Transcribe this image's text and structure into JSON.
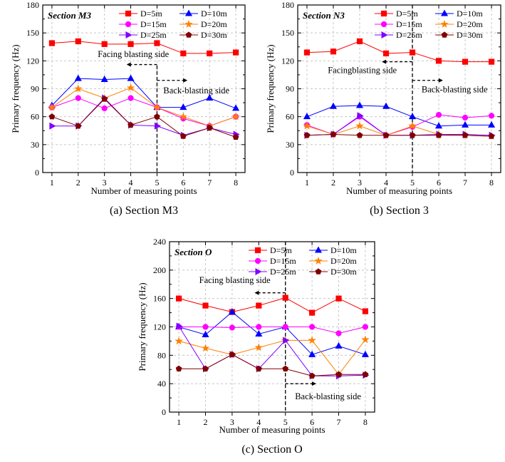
{
  "chart_data": [
    {
      "type": "line",
      "title": "Section M3",
      "caption": "(a) Section M3",
      "xlabel": "Number of measuring points",
      "ylabel": "Primary frequency (Hz)",
      "x": [
        1,
        2,
        3,
        4,
        5,
        6,
        7,
        8
      ],
      "xlim": [
        0.65,
        8.35
      ],
      "ylim": [
        0,
        180
      ],
      "yticks": [
        0,
        30,
        60,
        90,
        120,
        150,
        180
      ],
      "grid": true,
      "legend_position": "top-right",
      "annotations": {
        "facing": "Facing blasting side",
        "back": "Back-blasting side"
      },
      "series": [
        {
          "name": "D=5m",
          "marker": "square",
          "color": "#ff0000",
          "values": [
            139,
            141,
            138,
            138,
            139,
            128,
            128,
            129
          ]
        },
        {
          "name": "D=10m",
          "marker": "triangle-up",
          "color": "#0000ff",
          "values": [
            72,
            101,
            100,
            101,
            70,
            70,
            80,
            69
          ]
        },
        {
          "name": "D=15m",
          "marker": "circle",
          "color": "#ff00ff",
          "values": [
            70,
            80,
            69,
            80,
            70,
            58,
            50,
            60
          ]
        },
        {
          "name": "D=20m",
          "marker": "star",
          "color": "#ff8000",
          "values": [
            70,
            90,
            80,
            91,
            70,
            60,
            50,
            60
          ]
        },
        {
          "name": "D=25m",
          "marker": "triangle-right",
          "color": "#8000ff",
          "values": [
            50,
            50,
            80,
            51,
            50,
            40,
            48,
            41
          ]
        },
        {
          "name": "D=30m",
          "marker": "pentagon",
          "color": "#800000",
          "values": [
            60,
            50,
            79,
            51,
            60,
            39,
            48,
            38
          ]
        }
      ]
    },
    {
      "type": "line",
      "title": "Section N3",
      "caption": "(b) Section 3",
      "xlabel": "Number of measuring points",
      "ylabel": "Primary frequency (Hz)",
      "x": [
        1,
        2,
        3,
        4,
        5,
        6,
        7,
        8
      ],
      "xlim": [
        0.65,
        8.35
      ],
      "ylim": [
        0,
        180
      ],
      "yticks": [
        0,
        30,
        60,
        90,
        120,
        150,
        180
      ],
      "grid": true,
      "legend_position": "top-right",
      "annotations": {
        "facing": "Facingblasting side",
        "back": "Back-blasting side"
      },
      "series": [
        {
          "name": "D=5m",
          "marker": "square",
          "color": "#ff0000",
          "values": [
            129,
            130,
            141,
            128,
            129,
            120,
            119,
            119
          ]
        },
        {
          "name": "D=10m",
          "marker": "triangle-up",
          "color": "#0000ff",
          "values": [
            60,
            71,
            72,
            71,
            60,
            50,
            51,
            51
          ]
        },
        {
          "name": "D=15m",
          "marker": "circle",
          "color": "#ff00ff",
          "values": [
            51,
            41,
            60,
            40,
            49,
            62,
            59,
            61
          ]
        },
        {
          "name": "D=20m",
          "marker": "star",
          "color": "#ff8000",
          "values": [
            50,
            41,
            50,
            40,
            50,
            41,
            40,
            39
          ]
        },
        {
          "name": "D=25m",
          "marker": "triangle-right",
          "color": "#8000ff",
          "values": [
            40,
            41,
            61,
            40,
            40,
            41,
            41,
            40
          ]
        },
        {
          "name": "D=30m",
          "marker": "pentagon",
          "color": "#800000",
          "values": [
            40,
            41,
            40,
            40,
            40,
            40,
            40,
            39
          ]
        }
      ]
    },
    {
      "type": "line",
      "title": "Section O",
      "caption": "(c) Section O",
      "xlabel": "Number of measuring points",
      "ylabel": "Primary frequency (Hz)",
      "x": [
        1,
        2,
        3,
        4,
        5,
        6,
        7,
        8
      ],
      "xlim": [
        0.65,
        8.35
      ],
      "ylim": [
        0,
        240
      ],
      "yticks": [
        0,
        40,
        80,
        120,
        160,
        200,
        240
      ],
      "grid": true,
      "legend_position": "top-right",
      "annotations": {
        "facing": "Facing blasting side",
        "back": "Back-blasting side"
      },
      "series": [
        {
          "name": "D=5m",
          "marker": "square",
          "color": "#ff0000",
          "values": [
            160,
            150,
            141,
            150,
            161,
            140,
            160,
            142
          ]
        },
        {
          "name": "D=10m",
          "marker": "triangle-up",
          "color": "#0000ff",
          "values": [
            120,
            109,
            141,
            110,
            120,
            81,
            93,
            81
          ]
        },
        {
          "name": "D=15m",
          "marker": "circle",
          "color": "#ff00ff",
          "values": [
            120,
            120,
            119,
            120,
            120,
            120,
            111,
            120
          ]
        },
        {
          "name": "D=20m",
          "marker": "star",
          "color": "#ff8000",
          "values": [
            100,
            90,
            81,
            91,
            101,
            101,
            53,
            102
          ]
        },
        {
          "name": "D=25m",
          "marker": "triangle-right",
          "color": "#8000ff",
          "values": [
            121,
            61,
            81,
            61,
            101,
            51,
            51,
            52
          ]
        },
        {
          "name": "D=30m",
          "marker": "pentagon",
          "color": "#800000",
          "values": [
            61,
            61,
            81,
            61,
            61,
            51,
            53,
            53
          ]
        }
      ]
    }
  ]
}
